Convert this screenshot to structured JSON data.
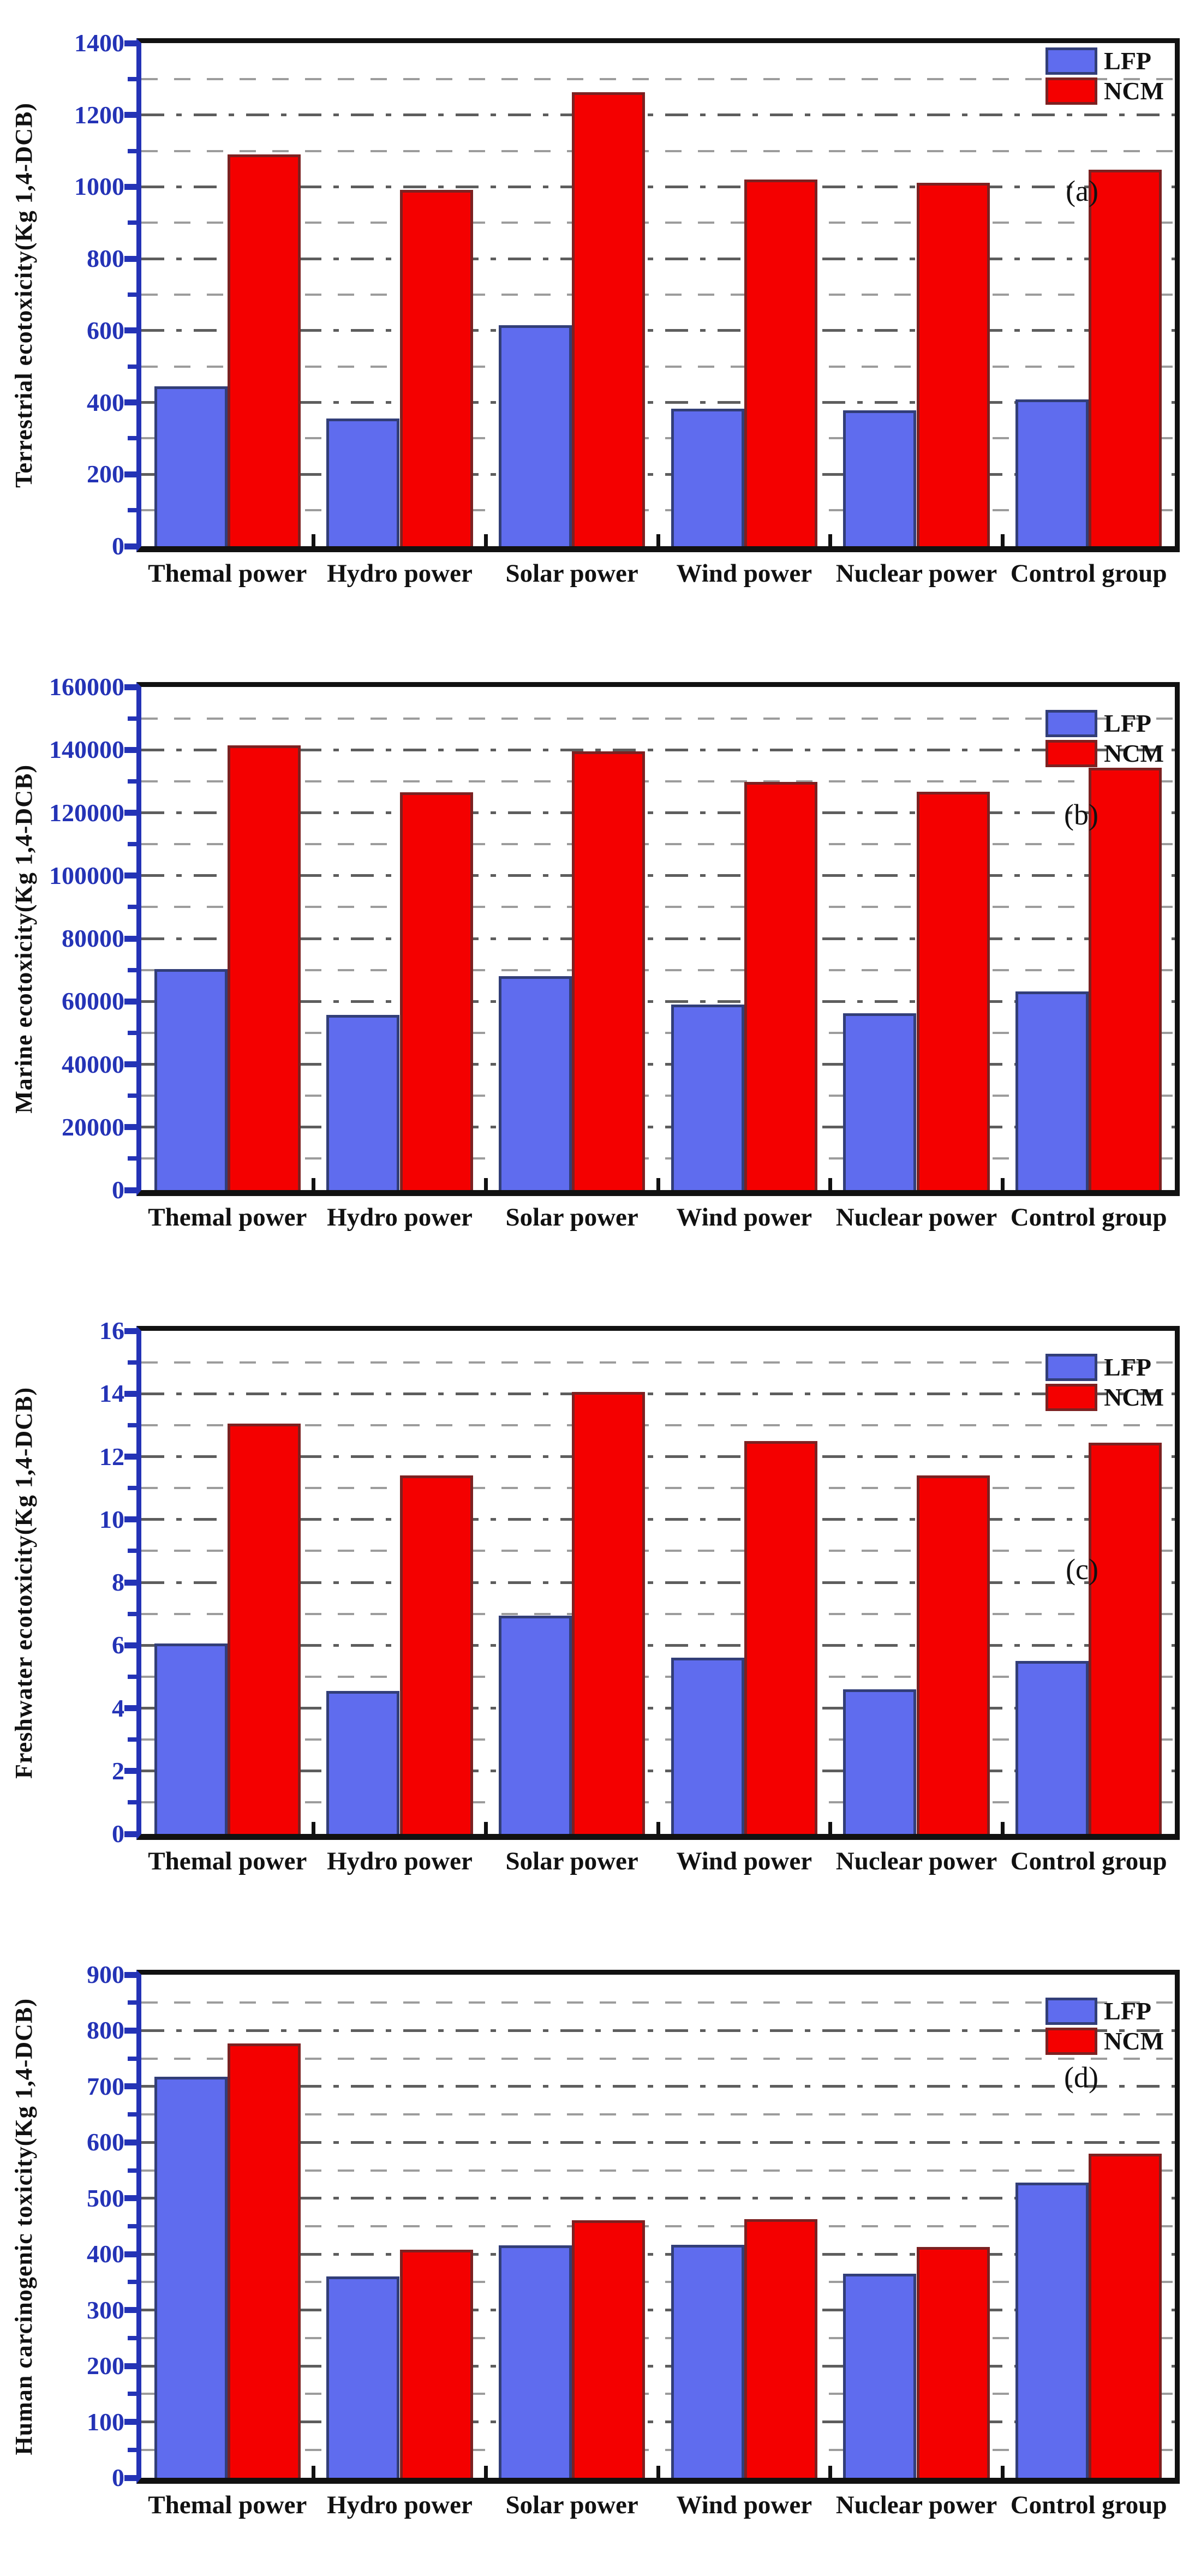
{
  "figure": {
    "legend": [
      "LFP",
      "NCM"
    ],
    "categories": [
      "Themal power",
      "Hydro power",
      "Solar power",
      "Wind power",
      "Nuclear power",
      "Control group"
    ],
    "colors": {
      "lfp_fill": "#5f6cee",
      "lfp_edge": "#323e78",
      "ncm_fill": "#f40000",
      "ncm_edge": "#7c2121",
      "axis_blue": "#2433b6",
      "grid_major": "#5d5d5d",
      "grid_minor": "#9c9c9c",
      "frame_black": "#111111"
    }
  },
  "chart_data": [
    {
      "type": "bar",
      "panel_label": "(a)",
      "ylabel": "Terrestrial ecotoxicity(Kg 1,4-DCB)",
      "xlabel": "",
      "ylim": [
        0,
        1400
      ],
      "ytick_step": 200,
      "grid_step": 100,
      "grid": true,
      "legend_position": "top-right",
      "categories": [
        "Themal power",
        "Hydro power",
        "Solar power",
        "Wind power",
        "Nuclear power",
        "Control group"
      ],
      "series": [
        {
          "name": "LFP",
          "values": [
            445,
            355,
            615,
            383,
            378,
            408
          ]
        },
        {
          "name": "NCM",
          "values": [
            1090,
            992,
            1264,
            1021,
            1011,
            1047
          ]
        }
      ]
    },
    {
      "type": "bar",
      "panel_label": "(b)",
      "ylabel": "Marine ecotoxicity(Kg 1,4-DCB)",
      "xlabel": "",
      "ylim": [
        0,
        160000
      ],
      "ytick_step": 20000,
      "grid_step": 10000,
      "grid": true,
      "legend_position": "top-right",
      "categories": [
        "Themal power",
        "Hydro power",
        "Solar power",
        "Wind power",
        "Nuclear power",
        "Control group"
      ],
      "series": [
        {
          "name": "LFP",
          "values": [
            70300,
            55700,
            68000,
            59000,
            56300,
            63200
          ]
        },
        {
          "name": "NCM",
          "values": [
            141500,
            126500,
            139500,
            129800,
            126700,
            134300
          ]
        }
      ]
    },
    {
      "type": "bar",
      "panel_label": "(c)",
      "ylabel": "Freshwater ecotoxicity(Kg 1,4-DCB)",
      "xlabel": "",
      "ylim": [
        0,
        16
      ],
      "ytick_step": 2,
      "grid_step": 1,
      "grid": true,
      "legend_position": "top-right",
      "categories": [
        "Themal power",
        "Hydro power",
        "Solar power",
        "Wind power",
        "Nuclear power",
        "Control group"
      ],
      "series": [
        {
          "name": "LFP",
          "values": [
            6.05,
            4.55,
            6.95,
            5.6,
            4.6,
            5.5
          ]
        },
        {
          "name": "NCM",
          "values": [
            13.05,
            11.4,
            14.05,
            12.5,
            11.4,
            12.45
          ]
        }
      ]
    },
    {
      "type": "bar",
      "panel_label": "(d)",
      "ylabel": "Human carcinogenic toxicity(Kg 1,4-DCB)",
      "xlabel": "",
      "ylim": [
        0,
        900
      ],
      "ytick_step": 100,
      "grid_step": 50,
      "grid": true,
      "legend_position": "top-right",
      "categories": [
        "Themal power",
        "Hydro power",
        "Solar power",
        "Wind power",
        "Nuclear power",
        "Control group"
      ],
      "series": [
        {
          "name": "LFP",
          "values": [
            717,
            360,
            416,
            417,
            365,
            528
          ]
        },
        {
          "name": "NCM",
          "values": [
            777,
            408,
            461,
            463,
            413,
            580
          ]
        }
      ]
    }
  ]
}
